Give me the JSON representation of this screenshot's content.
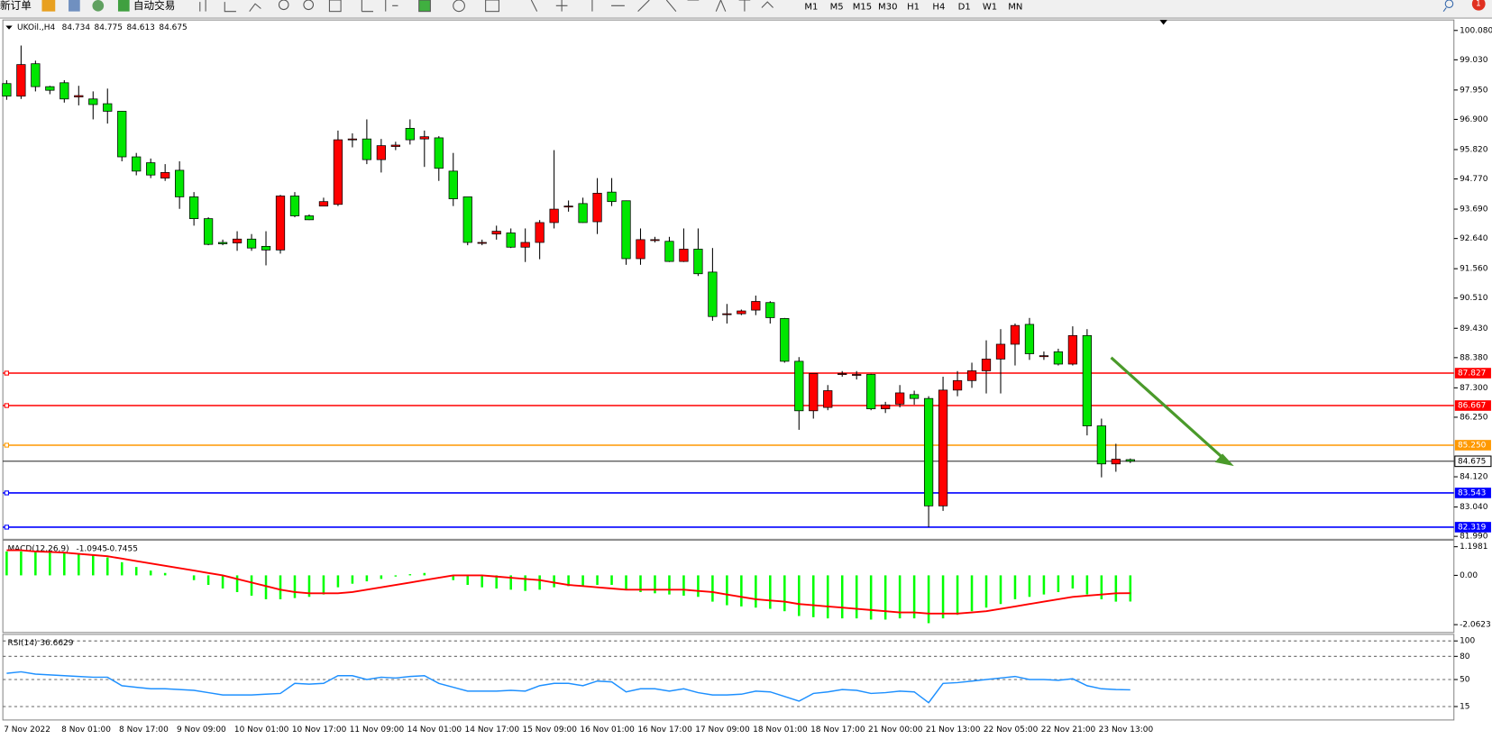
{
  "toolbar": {
    "new_order": "新订单",
    "auto_trading": "自动交易",
    "timeframes": [
      "M1",
      "M5",
      "M15",
      "M30",
      "H1",
      "H4",
      "D1",
      "W1",
      "MN"
    ]
  },
  "chart_data": [
    {
      "type": "candlestick",
      "title": "UKOil.,H4",
      "categories": [
        "7 Nov 2022",
        null,
        null,
        null,
        "8 Nov 01:00",
        null,
        null,
        null,
        "8 Nov 17:00",
        null,
        null,
        null,
        "9 Nov 09:00",
        null,
        null,
        null,
        "10 Nov 01:00",
        null,
        null,
        null,
        "10 Nov 17:00",
        null,
        null,
        null,
        "11 Nov 09:00",
        null,
        null,
        null,
        "14 Nov 01:00",
        null,
        null,
        null,
        "14 Nov 17:00",
        null,
        null,
        null,
        "15 Nov 09:00",
        null,
        null,
        null,
        "16 Nov 01:00",
        null,
        null,
        null,
        "16 Nov 17:00",
        null,
        null,
        null,
        "17 Nov 09:00",
        null,
        null,
        null,
        "18 Nov 01:00",
        null,
        null,
        null,
        "18 Nov 17:00",
        null,
        null,
        null,
        "21 Nov 00:00",
        null,
        null,
        null,
        "21 Nov 13:00",
        null,
        null,
        null,
        "22 Nov 05:00",
        null,
        null,
        null,
        "22 Nov 21:00",
        null,
        null,
        null,
        "23 Nov 13:00",
        null,
        null
      ],
      "open": [
        98.18,
        97.73,
        98.89,
        98.07,
        98.21,
        97.7,
        97.63,
        97.46,
        97.19,
        95.56,
        95.35,
        94.8,
        95.08,
        94.13,
        93.35,
        92.5,
        92.48,
        92.62,
        92.36,
        92.23,
        94.16,
        93.45,
        93.8,
        93.86,
        96.2,
        96.2,
        95.46,
        95.93,
        96.58,
        96.2,
        96.24,
        95.05,
        94.13,
        92.5,
        92.8,
        92.84,
        92.33,
        92.5,
        93.21,
        93.8,
        93.89,
        93.24,
        94.3,
        93.99,
        91.92,
        92.6,
        92.54,
        91.82,
        92.26,
        91.44,
        89.95,
        89.95,
        90.08,
        90.35,
        89.78,
        88.25,
        86.48,
        86.6,
        87.81,
        87.78,
        87.78,
        86.55,
        86.72,
        87.06,
        86.92,
        83.08,
        87.22,
        87.56,
        87.91,
        88.33,
        88.86,
        89.57,
        88.45,
        88.59,
        88.15,
        89.17,
        85.94,
        84.58,
        84.734
      ],
      "high": [
        98.3,
        99.54,
        99.0,
        98.1,
        98.3,
        98.1,
        97.9,
        98.0,
        97.2,
        95.7,
        95.5,
        95.3,
        95.4,
        94.3,
        93.4,
        92.6,
        92.9,
        92.8,
        92.9,
        94.2,
        94.3,
        93.5,
        94.1,
        96.5,
        96.4,
        96.9,
        96.2,
        96.1,
        96.9,
        96.5,
        96.3,
        95.7,
        94.1,
        92.6,
        93.1,
        93.0,
        93.0,
        93.3,
        95.8,
        94.0,
        94.1,
        94.8,
        94.8,
        94.0,
        93.0,
        92.7,
        92.7,
        93.0,
        93.0,
        92.3,
        90.3,
        90.1,
        90.6,
        90.4,
        89.8,
        88.4,
        87.8,
        87.4,
        87.9,
        87.9,
        87.8,
        86.8,
        87.4,
        87.2,
        87.0,
        87.7,
        87.9,
        88.2,
        89.0,
        89.4,
        89.6,
        89.8,
        88.6,
        88.7,
        89.5,
        89.4,
        86.2,
        85.3,
        84.775
      ],
      "low": [
        97.6,
        97.63,
        97.9,
        97.8,
        97.5,
        97.4,
        96.9,
        96.75,
        95.4,
        94.9,
        94.8,
        94.7,
        93.7,
        93.1,
        92.4,
        92.4,
        92.2,
        92.2,
        91.68,
        92.1,
        93.4,
        93.3,
        93.8,
        93.8,
        95.9,
        95.3,
        95.0,
        95.8,
        96.0,
        95.2,
        94.7,
        93.8,
        92.4,
        92.4,
        92.6,
        92.3,
        91.8,
        91.9,
        93.0,
        93.6,
        93.2,
        92.8,
        93.8,
        91.7,
        91.7,
        92.5,
        91.8,
        91.8,
        91.3,
        89.7,
        89.6,
        89.9,
        89.9,
        89.6,
        88.2,
        85.8,
        86.2,
        86.5,
        87.7,
        87.6,
        86.5,
        86.4,
        86.6,
        86.7,
        82.32,
        82.9,
        87.0,
        87.3,
        87.1,
        87.1,
        88.1,
        88.3,
        88.3,
        88.1,
        88.1,
        85.6,
        84.1,
        84.3,
        84.613
      ],
      "close": [
        97.73,
        98.86,
        98.07,
        97.94,
        97.63,
        97.75,
        97.43,
        97.19,
        95.56,
        95.05,
        94.91,
        95.0,
        94.13,
        93.35,
        92.43,
        92.45,
        92.62,
        92.3,
        92.23,
        94.16,
        93.45,
        93.31,
        93.96,
        96.17,
        96.2,
        95.46,
        95.96,
        95.98,
        96.17,
        96.28,
        95.15,
        94.06,
        92.5,
        92.5,
        92.9,
        92.33,
        92.5,
        93.21,
        93.69,
        93.8,
        93.21,
        94.26,
        93.96,
        91.92,
        92.6,
        92.6,
        91.82,
        92.26,
        91.38,
        89.85,
        89.95,
        90.05,
        90.39,
        89.81,
        88.25,
        86.48,
        87.81,
        87.2,
        87.81,
        87.78,
        86.55,
        86.69,
        87.12,
        86.92,
        83.08,
        87.22,
        87.56,
        87.91,
        88.33,
        88.86,
        89.53,
        88.52,
        88.45,
        88.15,
        89.17,
        85.94,
        84.58,
        84.75,
        84.675
      ],
      "up_color": "#ff0000",
      "down_color": "#00e600",
      "ylim": [
        81.92,
        100.42
      ],
      "yticks": [
        {
          "value": 100.08,
          "label": "100.080"
        },
        {
          "value": 99.03,
          "label": "99.030"
        },
        {
          "value": 97.95,
          "label": "97.950"
        },
        {
          "value": 96.9,
          "label": "96.900"
        },
        {
          "value": 95.82,
          "label": "95.820"
        },
        {
          "value": 94.77,
          "label": "94.770"
        },
        {
          "value": 93.69,
          "label": "93.690"
        },
        {
          "value": 92.64,
          "label": "92.640"
        },
        {
          "value": 91.56,
          "label": "91.560"
        },
        {
          "value": 90.51,
          "label": "90.510"
        },
        {
          "value": 89.43,
          "label": "89.430"
        },
        {
          "value": 88.38,
          "label": "88.380"
        },
        {
          "value": 87.3,
          "label": "87.300"
        },
        {
          "value": 86.25,
          "label": "86.250"
        },
        {
          "value": 84.12,
          "label": "84.120"
        },
        {
          "value": 83.04,
          "label": "83.040"
        },
        {
          "value": 81.99,
          "label": "81.990"
        }
      ],
      "hlines": [
        {
          "value": 87.827,
          "color": "#ff0000"
        },
        {
          "value": 86.667,
          "color": "#ff0000"
        },
        {
          "value": 85.25,
          "label": "85.250",
          "color": "#ff9900"
        },
        {
          "value": 83.543,
          "color": "#0000ff"
        },
        {
          "value": 82.319,
          "color": "#0000ff"
        }
      ]
    },
    {
      "type": "macd",
      "title": "MACD(12,26,9)",
      "values": [
        1.0,
        1.0,
        1.0,
        1.0,
        0.95,
        0.9,
        0.85,
        0.75,
        0.55,
        0.35,
        0.2,
        0.1,
        0.0,
        -0.2,
        -0.4,
        -0.55,
        -0.7,
        -0.85,
        -1.0,
        -1.0,
        -0.95,
        -0.9,
        -0.8,
        -0.5,
        -0.35,
        -0.25,
        -0.15,
        -0.05,
        0.05,
        0.1,
        0.0,
        -0.2,
        -0.4,
        -0.5,
        -0.55,
        -0.6,
        -0.65,
        -0.6,
        -0.5,
        -0.45,
        -0.45,
        -0.4,
        -0.4,
        -0.6,
        -0.7,
        -0.75,
        -0.8,
        -0.85,
        -0.9,
        -1.1,
        -1.25,
        -1.3,
        -1.35,
        -1.4,
        -1.5,
        -1.7,
        -1.75,
        -1.8,
        -1.8,
        -1.8,
        -1.85,
        -1.85,
        -1.8,
        -1.8,
        -2.0,
        -1.8,
        -1.65,
        -1.5,
        -1.35,
        -1.2,
        -1.0,
        -0.9,
        -0.8,
        -0.7,
        -0.55,
        -0.8,
        -1.0,
        -1.1,
        -1.0945
      ],
      "signal": [
        1.05,
        1.05,
        1.0,
        0.98,
        0.95,
        0.9,
        0.85,
        0.8,
        0.7,
        0.6,
        0.5,
        0.4,
        0.3,
        0.2,
        0.1,
        0.0,
        -0.15,
        -0.3,
        -0.45,
        -0.6,
        -0.7,
        -0.75,
        -0.75,
        -0.75,
        -0.7,
        -0.6,
        -0.5,
        -0.4,
        -0.3,
        -0.2,
        -0.1,
        0.0,
        0.0,
        0.0,
        -0.05,
        -0.1,
        -0.15,
        -0.2,
        -0.3,
        -0.4,
        -0.45,
        -0.5,
        -0.55,
        -0.6,
        -0.6,
        -0.6,
        -0.6,
        -0.6,
        -0.65,
        -0.7,
        -0.8,
        -0.9,
        -1.0,
        -1.05,
        -1.1,
        -1.2,
        -1.25,
        -1.3,
        -1.35,
        -1.4,
        -1.45,
        -1.5,
        -1.55,
        -1.55,
        -1.6,
        -1.6,
        -1.6,
        -1.55,
        -1.5,
        -1.4,
        -1.3,
        -1.2,
        -1.1,
        -1.0,
        -0.9,
        -0.85,
        -0.8,
        -0.75,
        -0.7455
      ],
      "color": "#00ff00",
      "signal_color": "#ff0000",
      "ylim": [
        -2.35,
        1.47
      ],
      "yticks": [
        1.1981,
        {
          "value": 0,
          "label": "0.00"
        },
        -2.0623
      ]
    },
    {
      "type": "line",
      "title": "RSI(14)",
      "values": [
        58,
        60,
        57,
        56,
        55,
        54,
        53,
        53,
        42,
        40,
        38,
        38,
        37,
        36,
        33,
        30,
        30,
        30,
        31,
        32,
        45,
        44,
        45,
        55,
        55,
        50,
        53,
        52,
        54,
        55,
        45,
        40,
        35,
        35,
        35,
        36,
        35,
        42,
        45,
        45,
        42,
        48,
        47,
        34,
        38,
        38,
        35,
        38,
        33,
        30,
        30,
        31,
        35,
        34,
        28,
        22,
        32,
        34,
        37,
        36,
        32,
        33,
        35,
        34,
        20,
        45,
        46,
        48,
        50,
        52,
        54,
        50,
        50,
        49,
        51,
        42,
        38,
        37,
        36.6629
      ],
      "color": "#1e90ff",
      "ylim": [
        -2.4,
        108.5
      ],
      "yticks": [
        100,
        80,
        50,
        15
      ]
    }
  ]
}
